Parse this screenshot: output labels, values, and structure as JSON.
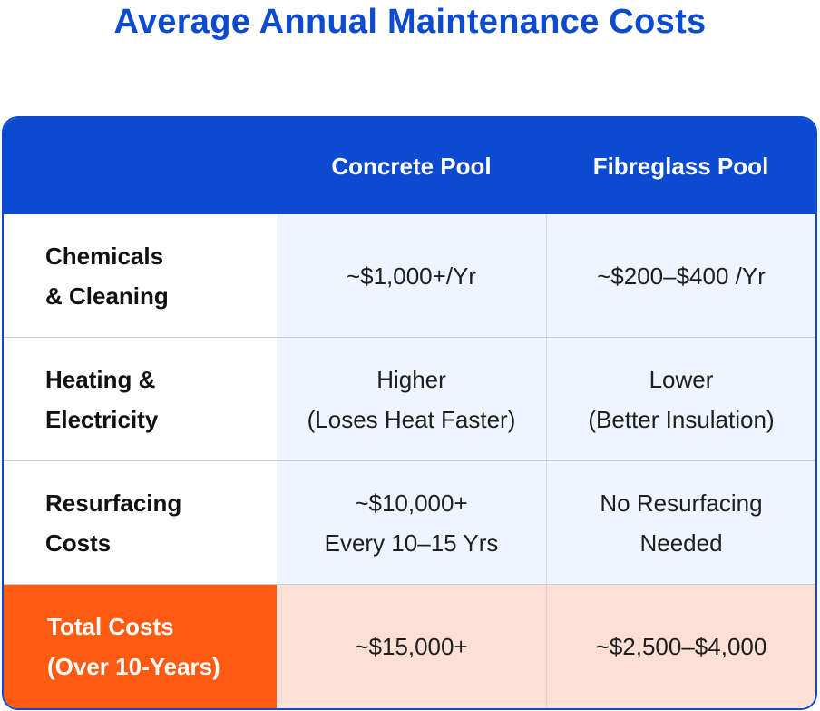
{
  "title": "Average Annual Maintenance Costs",
  "header": {
    "corner": "",
    "col1": "Concrete Pool",
    "col2": "Fibreglass Pool"
  },
  "rows": [
    {
      "label": "Chemicals\n& Cleaning",
      "concrete": "~$1,000+/Yr",
      "fibreglass": "~$200–$400 /Yr"
    },
    {
      "label": "Heating &\nElectricity",
      "concrete": "Higher\n(Loses Heat Faster)",
      "fibreglass": "Lower\n(Better Insulation)"
    },
    {
      "label": "Resurfacing\nCosts",
      "concrete": "~$10,000+\nEvery 10–15 Yrs",
      "fibreglass": "No Resurfacing\nNeeded"
    }
  ],
  "total": {
    "label": "Total Costs\n(Over 10-Years)",
    "concrete": "~$15,000+",
    "fibreglass": "~$2,500–$4,000"
  },
  "colors": {
    "brand_blue": "#0a4bd1",
    "accent_orange": "#fd5a12",
    "value_bg": "#eef5ff",
    "total_value_bg": "#fce0d5"
  }
}
